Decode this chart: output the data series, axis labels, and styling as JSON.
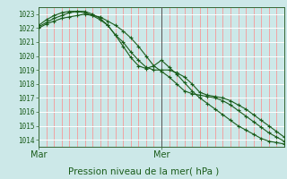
{
  "title": "",
  "xlabel": "Pression niveau de la mer( hPa )",
  "ylabel": "",
  "bg_color": "#cce8e8",
  "grid_color_white": "#ffffff",
  "grid_color_red": "#ff8888",
  "line_color": "#1a5c1a",
  "ylim": [
    1013.5,
    1023.5
  ],
  "xlim": [
    0,
    96
  ],
  "yticks": [
    1014,
    1015,
    1016,
    1017,
    1018,
    1019,
    1020,
    1021,
    1022,
    1023
  ],
  "xtick_positions": [
    0,
    48
  ],
  "xtick_labels": [
    "Mar",
    "Mer"
  ],
  "mer_line_x": 48,
  "line1_x": [
    0,
    3,
    6,
    9,
    12,
    15,
    18,
    21,
    24,
    27,
    30,
    33,
    36,
    39,
    42,
    45,
    48,
    51,
    54,
    57,
    60,
    63,
    66,
    69,
    72,
    75,
    78,
    81,
    84,
    87,
    90,
    93,
    96
  ],
  "line1_y": [
    1022.0,
    1022.3,
    1022.5,
    1022.7,
    1022.8,
    1022.9,
    1023.0,
    1022.9,
    1022.8,
    1022.5,
    1022.2,
    1021.8,
    1021.3,
    1020.7,
    1020.0,
    1019.3,
    1018.9,
    1018.5,
    1018.0,
    1017.5,
    1017.3,
    1017.2,
    1017.1,
    1017.0,
    1016.8,
    1016.5,
    1016.1,
    1015.7,
    1015.3,
    1014.9,
    1014.5,
    1014.2,
    1013.9
  ],
  "line2_x": [
    0,
    3,
    6,
    9,
    12,
    15,
    18,
    21,
    24,
    27,
    30,
    33,
    36,
    39,
    42,
    45,
    48,
    51,
    54,
    57,
    60,
    63,
    66,
    69,
    72,
    75,
    78,
    81,
    84,
    87,
    90,
    93,
    96
  ],
  "line2_y": [
    1022.2,
    1022.6,
    1022.9,
    1023.1,
    1023.2,
    1023.2,
    1023.1,
    1022.9,
    1022.6,
    1022.2,
    1021.5,
    1021.0,
    1020.3,
    1019.7,
    1019.2,
    1019.0,
    1019.0,
    1019.0,
    1018.8,
    1018.5,
    1018.0,
    1017.4,
    1017.2,
    1017.1,
    1017.0,
    1016.8,
    1016.5,
    1016.2,
    1015.8,
    1015.4,
    1015.0,
    1014.6,
    1014.2
  ],
  "line3_x": [
    0,
    3,
    6,
    9,
    12,
    15,
    18,
    21,
    24,
    27,
    30,
    33,
    36,
    39,
    42,
    45,
    48,
    51,
    54,
    57,
    60,
    63,
    66,
    69,
    72,
    75,
    78,
    81,
    84,
    87,
    90,
    93,
    96
  ],
  "line3_y": [
    1022.1,
    1022.4,
    1022.7,
    1022.9,
    1023.1,
    1023.2,
    1023.2,
    1023.0,
    1022.7,
    1022.2,
    1021.5,
    1020.7,
    1019.9,
    1019.3,
    1019.1,
    1019.3,
    1019.7,
    1019.2,
    1018.7,
    1018.1,
    1017.5,
    1017.0,
    1016.6,
    1016.2,
    1015.8,
    1015.4,
    1015.0,
    1014.7,
    1014.4,
    1014.1,
    1013.9,
    1013.8,
    1013.7
  ]
}
